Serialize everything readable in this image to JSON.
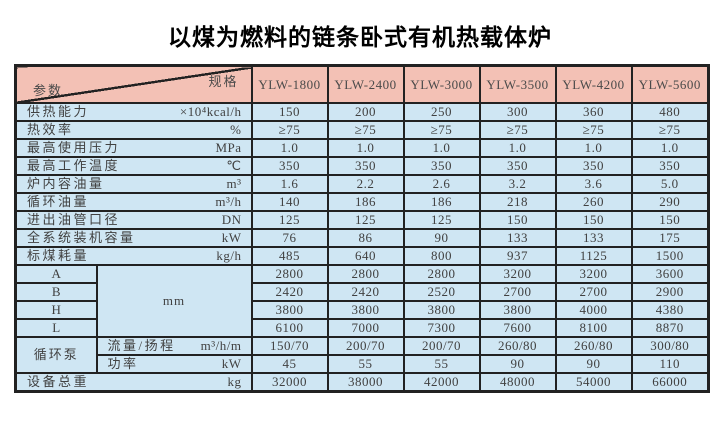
{
  "page": {
    "title": "以煤为燃料的链条卧式有机热载体炉"
  },
  "colors": {
    "header_bg": "#f3c1b5",
    "cell_bg": "#cfe6f3",
    "border": "#222222",
    "text": "#414141"
  },
  "table": {
    "corner": {
      "top_right": "规格",
      "bottom_left": "参数"
    },
    "models": [
      "YLW-1800",
      "YLW-2400",
      "YLW-3000",
      "YLW-3500",
      "YLW-4200",
      "YLW-5600"
    ],
    "dim_unit": "mm",
    "pump_group": "循环泵",
    "rows": [
      {
        "kind": "param",
        "label": "供热能力",
        "unit": "×10⁴kcal/h",
        "values": [
          "150",
          "200",
          "250",
          "300",
          "360",
          "480"
        ]
      },
      {
        "kind": "param",
        "label": "热效率",
        "unit": "%",
        "values": [
          "≥75",
          "≥75",
          "≥75",
          "≥75",
          "≥75",
          "≥75"
        ]
      },
      {
        "kind": "param",
        "label": "最高使用压力",
        "unit": "MPa",
        "values": [
          "1.0",
          "1.0",
          "1.0",
          "1.0",
          "1.0",
          "1.0"
        ]
      },
      {
        "kind": "param",
        "label": "最高工作温度",
        "unit": "℃",
        "values": [
          "350",
          "350",
          "350",
          "350",
          "350",
          "350"
        ]
      },
      {
        "kind": "param",
        "label": "炉内容油量",
        "unit": "m³",
        "values": [
          "1.6",
          "2.2",
          "2.6",
          "3.2",
          "3.6",
          "5.0"
        ]
      },
      {
        "kind": "param",
        "label": "循环油量",
        "unit": "m³/h",
        "values": [
          "140",
          "186",
          "186",
          "218",
          "260",
          "290"
        ]
      },
      {
        "kind": "param",
        "label": "进出油管口径",
        "unit": "DN",
        "values": [
          "125",
          "125",
          "125",
          "150",
          "150",
          "150"
        ]
      },
      {
        "kind": "param",
        "label": "全系统装机容量",
        "unit": "kW",
        "values": [
          "76",
          "86",
          "90",
          "133",
          "133",
          "175"
        ]
      },
      {
        "kind": "param",
        "label": "标煤耗量",
        "unit": "kg/h",
        "values": [
          "485",
          "640",
          "800",
          "937",
          "1125",
          "1500"
        ]
      },
      {
        "kind": "dim",
        "label": "A",
        "values": [
          "2800",
          "2800",
          "2800",
          "3200",
          "3200",
          "3600"
        ]
      },
      {
        "kind": "dim",
        "label": "B",
        "values": [
          "2420",
          "2420",
          "2520",
          "2700",
          "2700",
          "2900"
        ]
      },
      {
        "kind": "dim",
        "label": "H",
        "values": [
          "3800",
          "3800",
          "3800",
          "3800",
          "4000",
          "4380"
        ]
      },
      {
        "kind": "dim",
        "label": "L",
        "values": [
          "6100",
          "7000",
          "7300",
          "7600",
          "8100",
          "8870"
        ]
      },
      {
        "kind": "pump",
        "label": "流量/扬程",
        "unit": "m³/h/m",
        "values": [
          "150/70",
          "200/70",
          "200/70",
          "260/80",
          "260/80",
          "300/80"
        ]
      },
      {
        "kind": "pump",
        "label": "功率",
        "unit": "kW",
        "values": [
          "45",
          "55",
          "55",
          "90",
          "90",
          "110"
        ]
      },
      {
        "kind": "param",
        "label": "设备总重",
        "unit": "kg",
        "values": [
          "32000",
          "38000",
          "42000",
          "48000",
          "54000",
          "66000"
        ]
      }
    ]
  }
}
